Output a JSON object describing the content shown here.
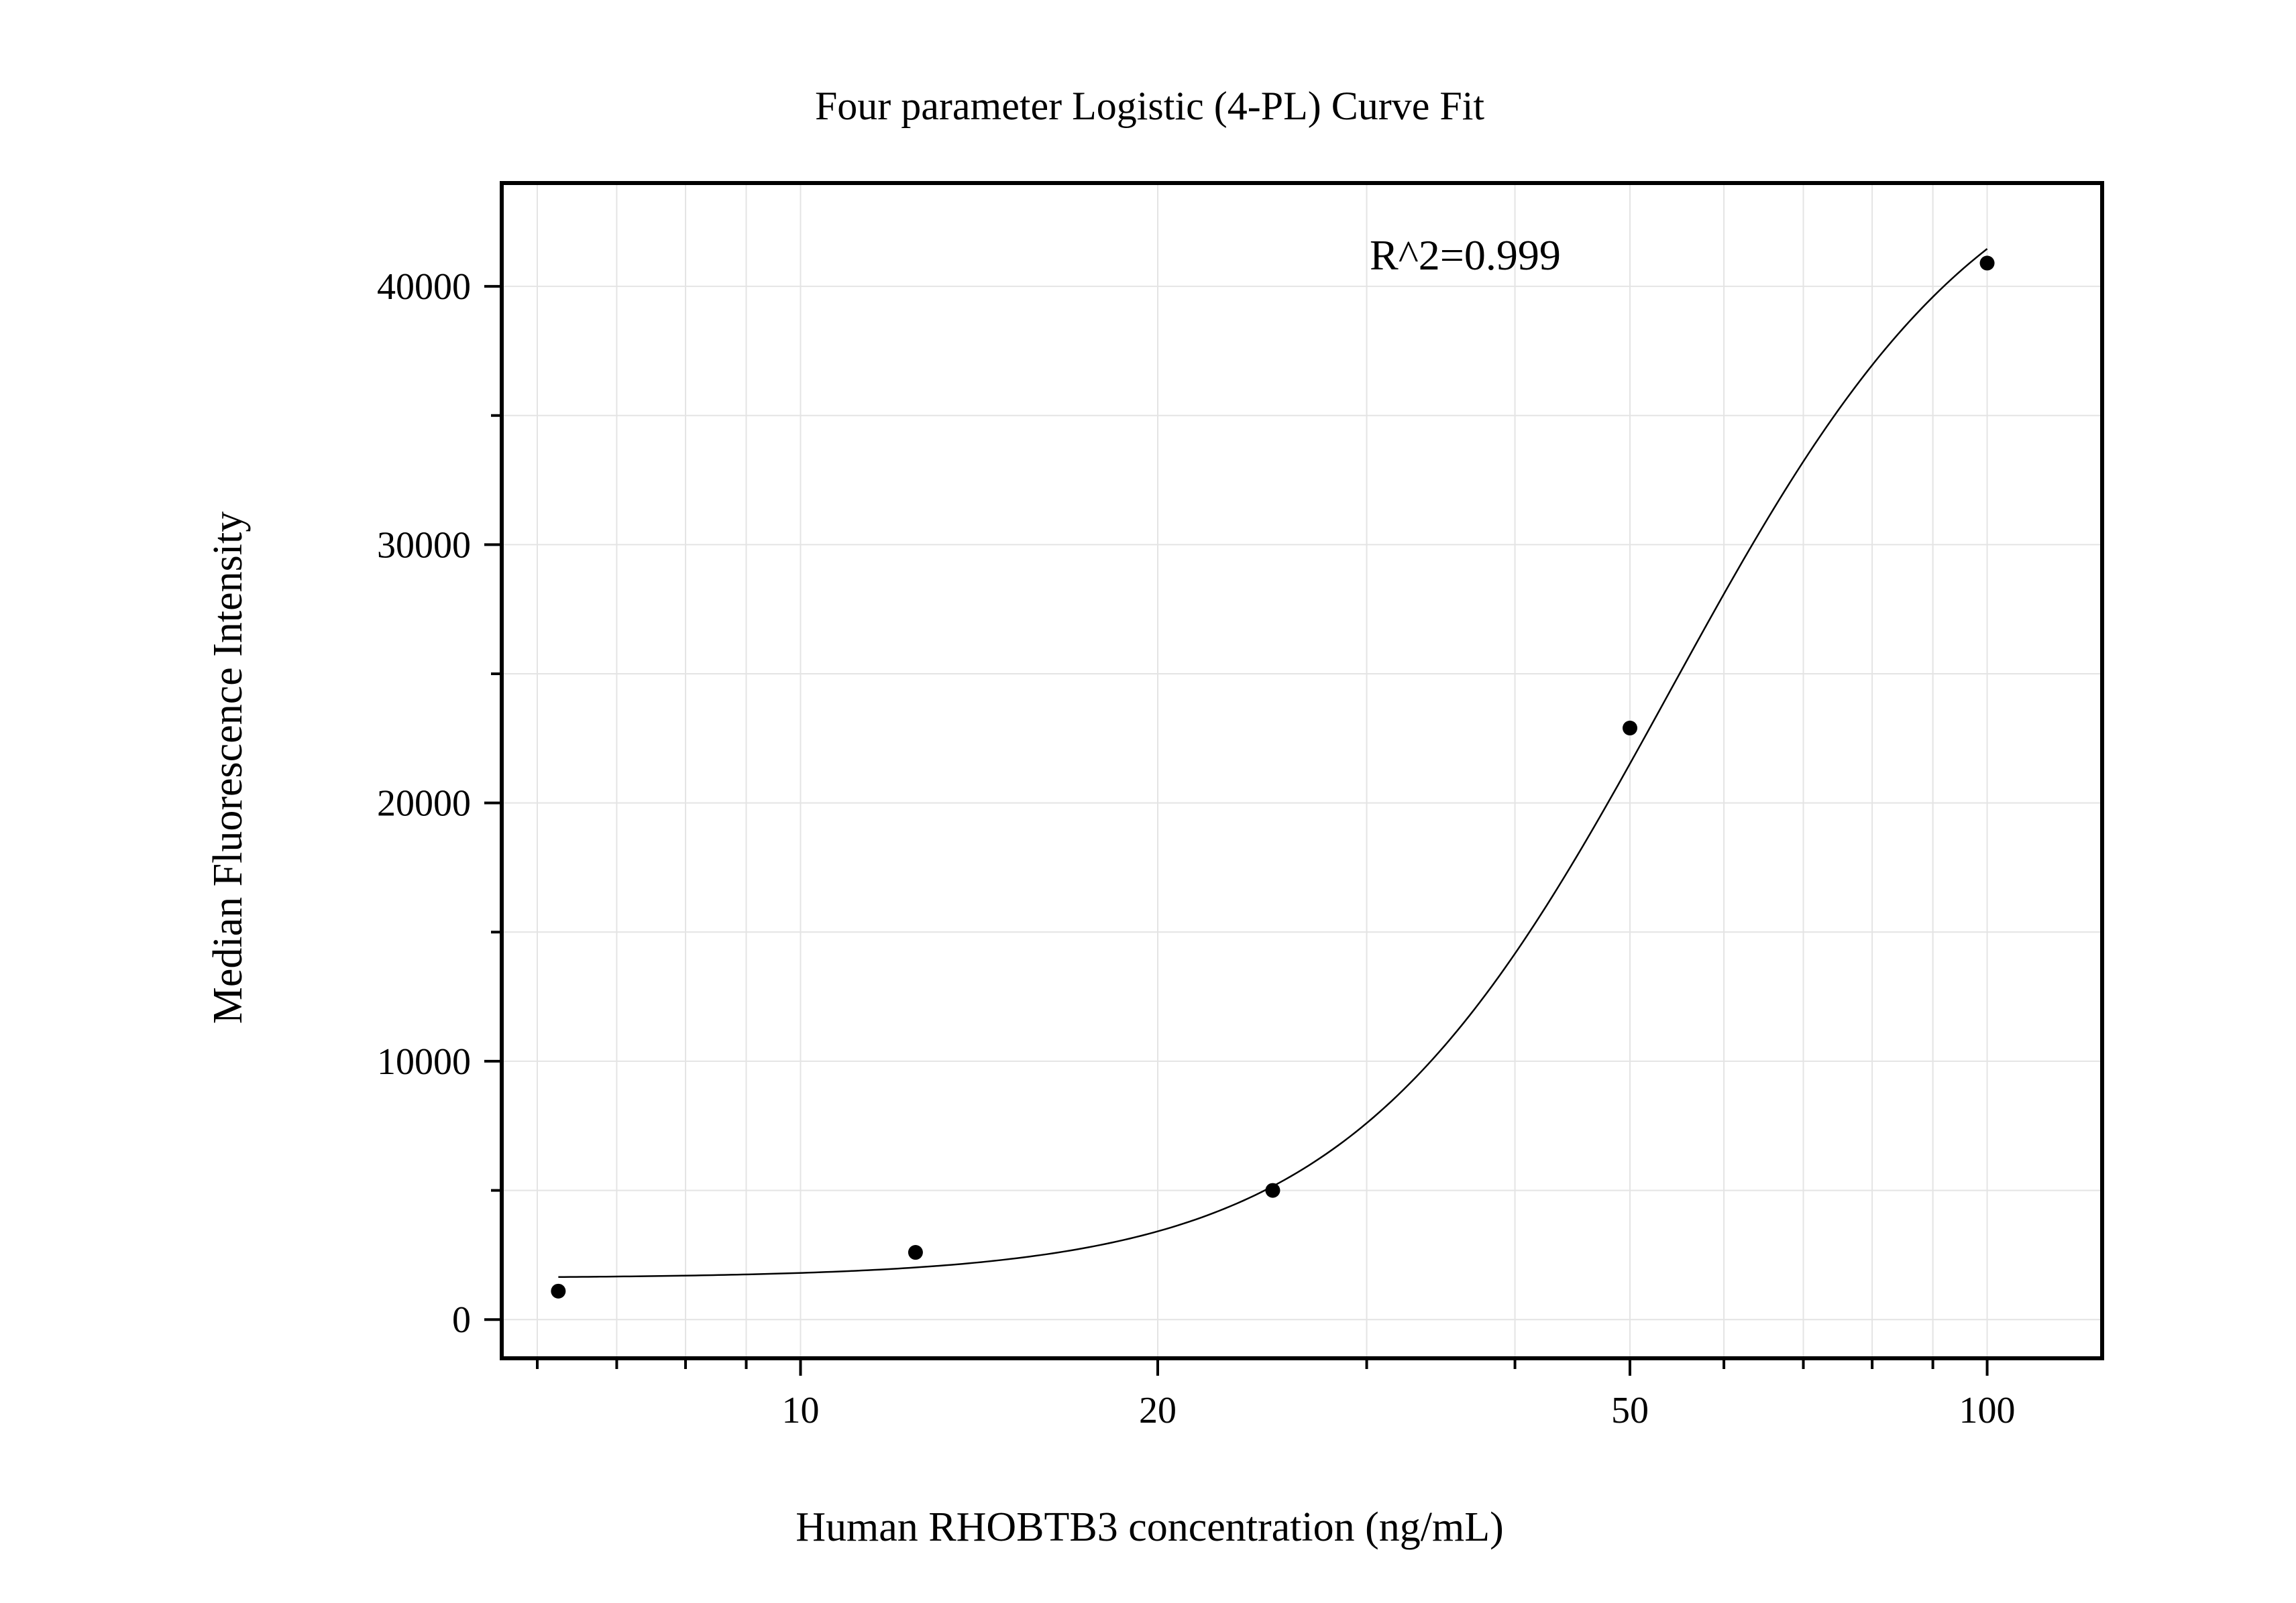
{
  "chart_data": {
    "type": "scatter",
    "title": "Four parameter Logistic (4-PL) Curve Fit",
    "xlabel": "Human RHOBTB3 concentration (ng/mL)",
    "ylabel": "Median Fluorescence Intensity",
    "x_scale": "log",
    "xlim": [
      5.6,
      125
    ],
    "ylim": [
      -1500,
      44000
    ],
    "x_ticks": [
      10,
      20,
      50,
      100
    ],
    "x_tick_labels": [
      "10",
      "20",
      "50",
      "100"
    ],
    "y_ticks": [
      0,
      10000,
      20000,
      30000,
      40000
    ],
    "y_tick_labels": [
      "0",
      "10000",
      "20000",
      "30000",
      "40000"
    ],
    "grid": true,
    "annotation": "R^2=0.999",
    "points": [
      {
        "x": 6.25,
        "y": 1100
      },
      {
        "x": 12.5,
        "y": 2600
      },
      {
        "x": 25,
        "y": 5000
      },
      {
        "x": 50,
        "y": 22900
      },
      {
        "x": 100,
        "y": 40900
      }
    ],
    "fit_curve": {
      "model": "4PL",
      "x_range": [
        6.25,
        100
      ],
      "params": {
        "bottom": 1600,
        "top": 47000,
        "ec50": 54,
        "hill": 3.2
      }
    },
    "colors": {
      "points": "#000000",
      "curve": "#000000",
      "grid": "#e4e4e4",
      "frame": "#000000"
    }
  }
}
